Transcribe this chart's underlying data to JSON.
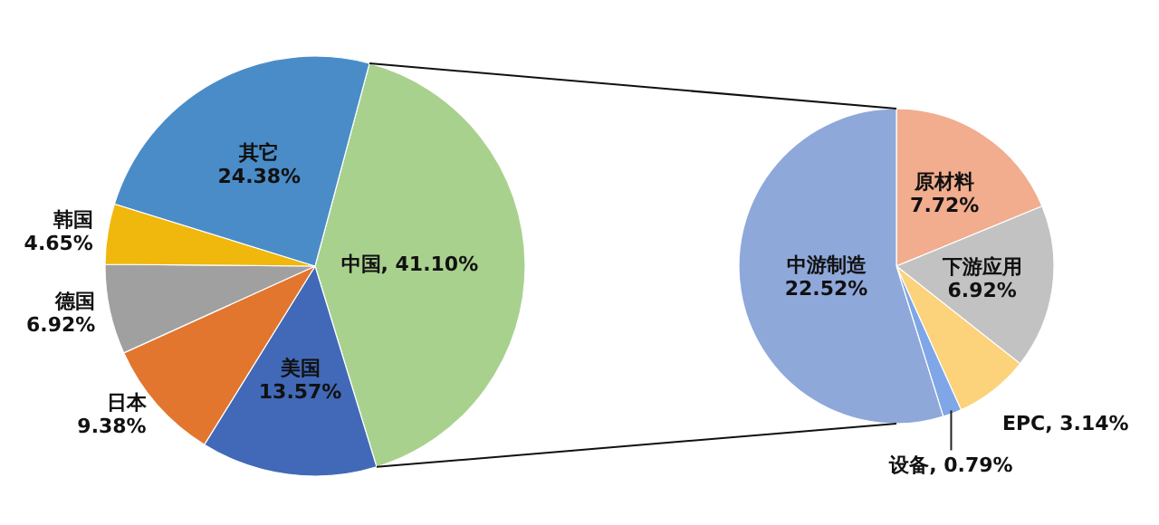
{
  "chart_data": [
    {
      "type": "pie",
      "categories": [
        "中国",
        "美国",
        "日本",
        "德国",
        "韩国",
        "其它"
      ],
      "values": [
        41.1,
        13.57,
        9.38,
        6.92,
        4.65,
        24.38
      ],
      "value_labels": [
        "41.10%",
        "13.57%",
        "9.38%",
        "6.92%",
        "4.65%",
        "24.38%"
      ],
      "colors": [
        "#a9d18e",
        "#4169b8",
        "#e2762f",
        "#a0a0a0",
        "#f0b70c",
        "#4a8cc8"
      ]
    },
    {
      "type": "pie",
      "categories": [
        "原材料",
        "下游应用",
        "EPC",
        "设备",
        "中游制造"
      ],
      "values": [
        7.72,
        6.92,
        3.14,
        0.79,
        22.52
      ],
      "value_labels": [
        "7.72%",
        "6.92%",
        "3.14%",
        "0.79%",
        "22.52%"
      ],
      "colors": [
        "#f1ad8e",
        "#c2c2c2",
        "#fcd27a",
        "#7fa6e6",
        "#8fa8da"
      ]
    }
  ]
}
